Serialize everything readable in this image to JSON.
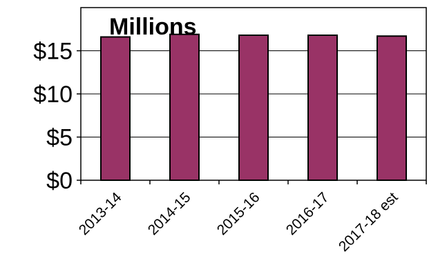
{
  "chart_data": {
    "type": "bar",
    "title": "Millions",
    "categories": [
      "2013-14",
      "2014-15",
      "2015-16",
      "2016-17",
      "2017-18 est"
    ],
    "values": [
      16.6,
      16.9,
      16.8,
      16.8,
      16.7
    ],
    "ylim": [
      0,
      20
    ],
    "yticks": [
      0,
      5,
      10,
      15
    ],
    "ytick_labels": [
      "$0",
      "$5",
      "$10",
      "$15"
    ],
    "grid": true,
    "bar_color": "#993366",
    "bar_edge_color": "#000000",
    "xlabel": "",
    "ylabel": ""
  }
}
